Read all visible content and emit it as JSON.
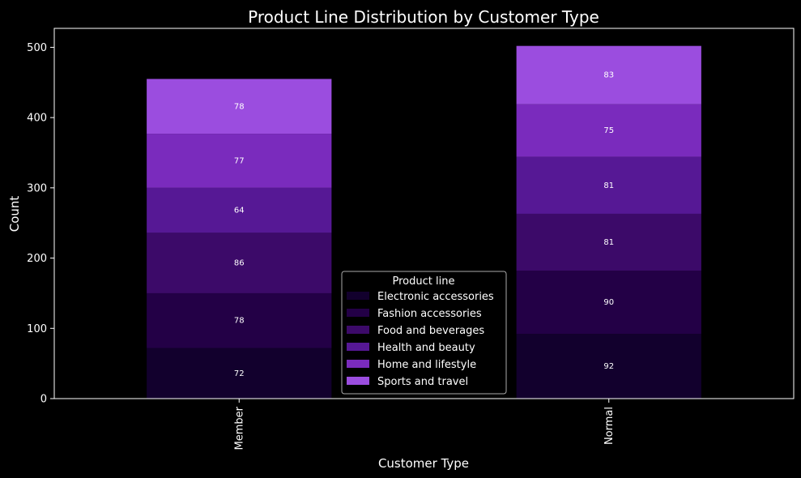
{
  "chart_data": {
    "type": "bar",
    "stacked": true,
    "title": "Product Line Distribution by Customer Type",
    "xlabel": "Customer Type",
    "ylabel": "Count",
    "categories": [
      "Member",
      "Normal"
    ],
    "ylim": [
      0,
      527
    ],
    "yticks": [
      0,
      100,
      200,
      300,
      400,
      500
    ],
    "legend_title": "Product line",
    "legend_position": "lower-center",
    "grid": false,
    "series": [
      {
        "name": "Electronic accessories",
        "values": [
          72,
          92
        ],
        "color": "#12002d"
      },
      {
        "name": "Fashion accessories",
        "values": [
          78,
          90
        ],
        "color": "#230046"
      },
      {
        "name": "Food and beverages",
        "values": [
          86,
          81
        ],
        "color": "#3c0a69"
      },
      {
        "name": "Health and beauty",
        "values": [
          64,
          81
        ],
        "color": "#561895"
      },
      {
        "name": "Home and lifestyle",
        "values": [
          77,
          75
        ],
        "color": "#7a2bbd"
      },
      {
        "name": "Sports and travel",
        "values": [
          78,
          83
        ],
        "color": "#9b4ddf"
      }
    ]
  },
  "colors": {
    "background": "#000000",
    "axes": "#ffffff",
    "text": "#ffffff",
    "legend_border": "#aaaaaa"
  }
}
